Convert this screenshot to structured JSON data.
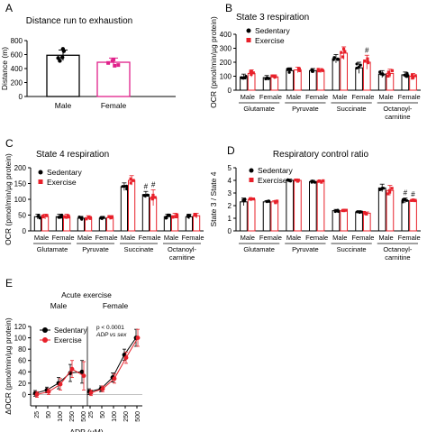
{
  "chart_data": [
    {
      "panel": "A",
      "type": "bar",
      "title": "Distance run to exhaustion",
      "ylabel": "Distance (m)",
      "categories": [
        "Male",
        "Female"
      ],
      "values": [
        590,
        490
      ],
      "errors": [
        75,
        60
      ],
      "points": [
        [
          680,
          650,
          550,
          510,
          560
        ],
        [
          530,
          480,
          450,
          440,
          510
        ]
      ],
      "ylim": [
        0,
        800
      ],
      "yticks": [
        0,
        200,
        400,
        600,
        800
      ],
      "bar_edge_colors": [
        "#000000",
        "#e0218a"
      ]
    },
    {
      "panel": "B",
      "type": "bar",
      "title": "State 3 respiration",
      "ylabel": "OCR (pmol/min/µg protein)",
      "ylim": [
        0,
        400
      ],
      "yticks": [
        0,
        100,
        200,
        300,
        400
      ],
      "legend": [
        "Sedentary",
        "Exercise"
      ],
      "colors": {
        "Sedentary": "#000000",
        "Exercise": "#e8202a"
      },
      "categories": [
        "Male",
        "Female",
        "Male",
        "Female",
        "Male",
        "Female",
        "Male",
        "Female"
      ],
      "groups": [
        "Glutamate",
        "Pyruvate",
        "Succinate",
        "Octanoyl-\ncarnitine"
      ],
      "series": [
        {
          "name": "Sedentary",
          "values": [
            95,
            90,
            140,
            140,
            225,
            160,
            115,
            110
          ],
          "errors": [
            20,
            15,
            20,
            15,
            30,
            40,
            25,
            20
          ]
        },
        {
          "name": "Exercise",
          "values": [
            120,
            95,
            145,
            140,
            265,
            200,
            120,
            100
          ],
          "errors": [
            25,
            15,
            20,
            15,
            45,
            50,
            30,
            20
          ]
        }
      ],
      "annotations": [
        {
          "text": "#",
          "index": 5
        }
      ]
    },
    {
      "panel": "C",
      "type": "bar",
      "title": "State 4 respiration",
      "ylabel": "OCR (pmol/min/µg protein)",
      "ylim": [
        0,
        200
      ],
      "yticks": [
        0,
        50,
        100,
        150,
        200
      ],
      "legend": [
        "Sedentary",
        "Exercise"
      ],
      "colors": {
        "Sedentary": "#000000",
        "Exercise": "#e8202a"
      },
      "categories": [
        "Male",
        "Female",
        "Male",
        "Female",
        "Male",
        "Female",
        "Male",
        "Female"
      ],
      "groups": [
        "Glutamate",
        "Pyruvate",
        "Succinate",
        "Octanoyl-\ncarnitine"
      ],
      "series": [
        {
          "name": "Sedentary",
          "values": [
            45,
            45,
            40,
            40,
            140,
            115,
            45,
            45
          ],
          "errors": [
            8,
            8,
            6,
            6,
            12,
            10,
            8,
            8
          ]
        },
        {
          "name": "Exercise",
          "values": [
            45,
            45,
            42,
            42,
            160,
            105,
            48,
            48
          ],
          "errors": [
            8,
            8,
            6,
            6,
            15,
            25,
            8,
            8
          ]
        }
      ],
      "annotations": [
        {
          "text": "#",
          "index": 5,
          "series": 0
        },
        {
          "text": "#",
          "index": 5,
          "series": 1
        }
      ]
    },
    {
      "panel": "D",
      "type": "bar",
      "title": "Respiratory control ratio",
      "ylabel": "State 3 / State 4",
      "ylim": [
        0,
        5
      ],
      "yticks": [
        0,
        1,
        2,
        3,
        4,
        5
      ],
      "legend": [
        "Sedentary",
        "Exercise"
      ],
      "colors": {
        "Sedentary": "#000000",
        "Exercise": "#e8202a"
      },
      "categories": [
        "Male",
        "Female",
        "Male",
        "Female",
        "Male",
        "Female",
        "Male",
        "Female"
      ],
      "groups": [
        "Glutamate",
        "Pyruvate",
        "Succinate",
        "Octanoyl-\ncarnitine"
      ],
      "series": [
        {
          "name": "Sedentary",
          "values": [
            2.3,
            2.3,
            4.0,
            3.9,
            1.6,
            1.5,
            3.4,
            2.4
          ],
          "errors": [
            0.3,
            0.1,
            0.1,
            0.1,
            0.1,
            0.1,
            0.3,
            0.2
          ]
        },
        {
          "name": "Exercise",
          "values": [
            2.5,
            2.3,
            4.0,
            3.9,
            1.6,
            1.4,
            3.2,
            2.4
          ],
          "errors": [
            0.1,
            0.1,
            0.1,
            0.1,
            0.1,
            0.1,
            0.4,
            0.1
          ]
        }
      ],
      "annotations": [
        {
          "text": "#",
          "index": 7,
          "series": 0
        },
        {
          "text": "#",
          "index": 7,
          "series": 1
        }
      ]
    },
    {
      "panel": "E",
      "type": "line",
      "title": "Acute exercise",
      "ylabel": "ΔOCR (pmol/min/µg protein)",
      "xlabel": "ADP (µM)",
      "subtitles": [
        "Male",
        "Female"
      ],
      "x": [
        "25",
        "50",
        "100",
        "250",
        "500"
      ],
      "ylim": [
        -20,
        120
      ],
      "yticks": [
        0,
        20,
        40,
        60,
        80,
        100,
        120
      ],
      "legend": [
        "Sedentary",
        "Exercise"
      ],
      "colors": {
        "Sedentary": "#000000",
        "Exercise": "#e8202a"
      },
      "annotation_text": [
        "p < 0.0001",
        "ADP vs sex"
      ],
      "series": [
        {
          "name": "Sedentary",
          "group": "Male",
          "values": [
            2,
            8,
            20,
            38,
            40
          ],
          "errors": [
            5,
            5,
            10,
            15,
            20
          ]
        },
        {
          "name": "Exercise",
          "group": "Male",
          "values": [
            0,
            5,
            18,
            45,
            33
          ],
          "errors": [
            5,
            5,
            10,
            15,
            25
          ]
        },
        {
          "name": "Sedentary",
          "group": "Female",
          "values": [
            5,
            10,
            30,
            70,
            100
          ],
          "errors": [
            5,
            5,
            8,
            10,
            15
          ]
        },
        {
          "name": "Exercise",
          "group": "Female",
          "values": [
            3,
            10,
            28,
            65,
            100
          ],
          "errors": [
            5,
            5,
            8,
            10,
            15
          ]
        }
      ]
    }
  ],
  "panel_labels": [
    "A",
    "B",
    "C",
    "D",
    "E"
  ]
}
